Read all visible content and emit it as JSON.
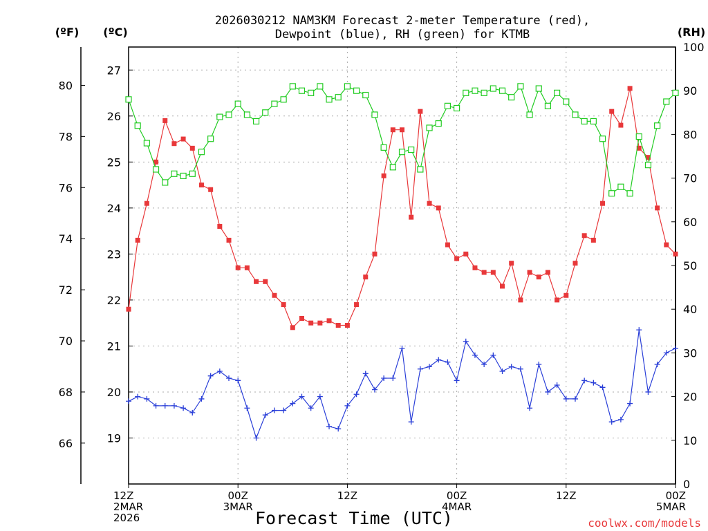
{
  "chart_data": {
    "type": "line",
    "title_line1": "2026030212 NAM3KM Forecast 2-meter Temperature (red),",
    "title_line2": "Dewpoint (blue), RH (green) for KTMB",
    "unit_f": "(ºF)",
    "unit_c": "(ºC)",
    "unit_rh": "(RH)",
    "xlabel": "Forecast Time (UTC)",
    "credit": "coolwx.com/models",
    "forecast_hours": [
      0,
      1,
      2,
      3,
      4,
      5,
      6,
      7,
      8,
      9,
      10,
      11,
      12,
      13,
      14,
      15,
      16,
      17,
      18,
      19,
      20,
      21,
      22,
      23,
      24,
      25,
      26,
      27,
      28,
      29,
      30,
      31,
      32,
      33,
      34,
      35,
      36,
      37,
      38,
      39,
      40,
      41,
      42,
      43,
      44,
      45,
      46,
      47,
      48,
      49,
      50,
      51,
      52,
      53,
      54,
      55,
      56,
      57,
      58,
      59,
      60
    ],
    "x_range": [
      0,
      60
    ],
    "x_ticks": [
      {
        "hour": 0,
        "lines": [
          "12Z",
          "2MAR",
          "2026"
        ]
      },
      {
        "hour": 12,
        "lines": [
          "00Z",
          "3MAR"
        ]
      },
      {
        "hour": 24,
        "lines": [
          "12Z"
        ]
      },
      {
        "hour": 36,
        "lines": [
          "00Z",
          "4MAR"
        ]
      },
      {
        "hour": 48,
        "lines": [
          "12Z"
        ]
      },
      {
        "hour": 60,
        "lines": [
          "00Z",
          "5MAR"
        ]
      }
    ],
    "celsius_axis": {
      "range": [
        18.0,
        27.5
      ],
      "ticks": [
        "19",
        "20",
        "21",
        "22",
        "23",
        "24",
        "25",
        "26",
        "27"
      ]
    },
    "fahrenheit_ticks": [
      "66",
      "68",
      "70",
      "72",
      "74",
      "76",
      "78",
      "80"
    ],
    "rh_axis": {
      "range": [
        0,
        100
      ],
      "ticks": [
        "0",
        "10",
        "20",
        "30",
        "40",
        "50",
        "60",
        "70",
        "80",
        "90",
        "100"
      ]
    },
    "series": [
      {
        "name": "2-meter Temperature",
        "unit": "°C",
        "color": "#e8383a",
        "marker": "filled-square",
        "values": [
          21.8,
          23.3,
          24.1,
          25.0,
          25.9,
          25.4,
          25.5,
          25.3,
          24.5,
          24.4,
          23.6,
          23.3,
          22.7,
          22.7,
          22.4,
          22.4,
          22.1,
          21.9,
          21.4,
          21.6,
          21.5,
          21.5,
          21.55,
          21.45,
          21.45,
          21.9,
          22.5,
          23.0,
          24.7,
          25.7,
          25.7,
          23.8,
          26.1,
          24.1,
          24.0,
          23.2,
          22.9,
          23.0,
          22.7,
          22.6,
          22.6,
          22.3,
          22.8,
          22.0,
          22.6,
          22.5,
          22.6,
          22.0,
          22.1,
          22.8,
          23.4,
          23.3,
          24.1,
          26.1,
          25.8,
          26.6,
          25.3,
          25.1,
          24.0,
          23.2,
          23.0
        ]
      },
      {
        "name": "Dewpoint",
        "unit": "°C",
        "color": "#2a3fd8",
        "marker": "plus",
        "values": [
          19.8,
          19.9,
          19.85,
          19.7,
          19.7,
          19.7,
          19.65,
          19.55,
          19.85,
          20.35,
          20.45,
          20.3,
          20.25,
          19.65,
          19.0,
          19.5,
          19.6,
          19.6,
          19.75,
          19.9,
          19.65,
          19.9,
          19.25,
          19.2,
          19.7,
          19.95,
          20.4,
          20.05,
          20.3,
          20.3,
          20.95,
          19.35,
          20.5,
          20.55,
          20.7,
          20.65,
          20.25,
          21.1,
          20.8,
          20.6,
          20.8,
          20.45,
          20.55,
          20.5,
          19.65,
          20.6,
          20.0,
          20.15,
          19.85,
          19.85,
          20.25,
          20.2,
          20.1,
          19.35,
          19.4,
          19.75,
          21.35,
          20.0,
          20.6,
          20.85,
          20.95
        ]
      },
      {
        "name": "RH",
        "unit": "%",
        "color": "#22cc22",
        "marker": "open-square",
        "values": [
          88,
          82,
          78,
          72,
          69,
          71,
          70.5,
          71,
          76,
          79,
          84,
          84.5,
          87,
          84.5,
          83,
          85,
          87,
          88,
          91,
          90,
          89.5,
          91,
          88,
          88.5,
          91,
          90,
          89,
          84.5,
          77,
          72.5,
          76,
          76.5,
          72,
          81.5,
          82.5,
          86.5,
          86,
          89.5,
          90,
          89.5,
          90.5,
          90,
          88.5,
          91,
          84.5,
          90.5,
          86.5,
          89.5,
          87.5,
          84.5,
          83,
          83,
          79,
          66.5,
          68,
          66.5,
          79.5,
          73,
          82,
          87.5,
          89.5
        ]
      }
    ]
  }
}
